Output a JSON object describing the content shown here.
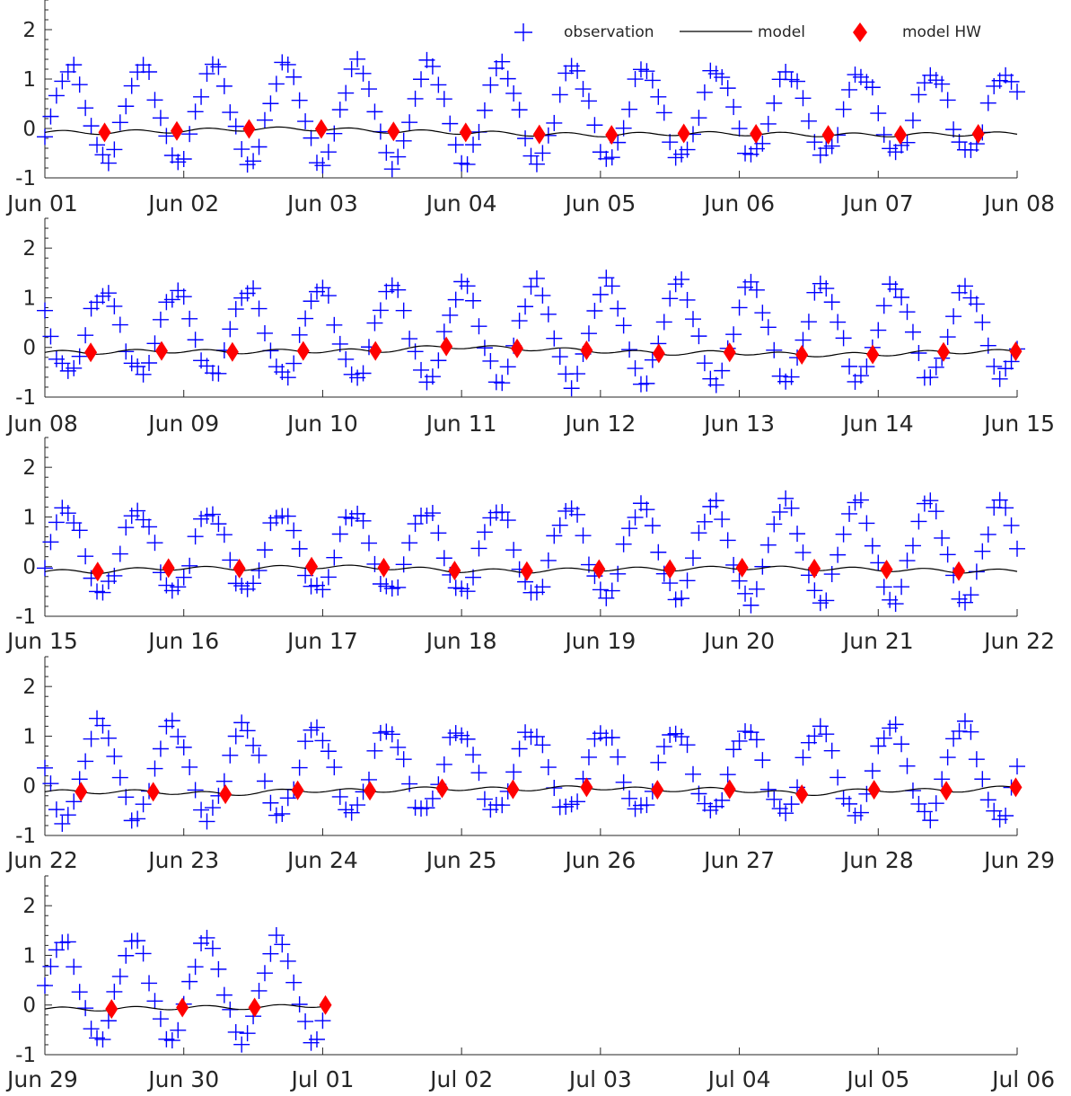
{
  "chart_data": {
    "type": "line",
    "title": "",
    "legend": {
      "placement": "top-right",
      "entries": [
        {
          "label": "observation",
          "marker": "plus",
          "color": "#0000ff"
        },
        {
          "label": "model",
          "marker": "line",
          "color": "#000000"
        },
        {
          "label": "model HW",
          "marker": "diamond",
          "color": "#ff0000"
        }
      ]
    },
    "colors": {
      "observation": "#0000ff",
      "model": "#000000",
      "model_hw": "#ff0000"
    },
    "ylim": [
      -1,
      2.6
    ],
    "yticks": [
      "-1",
      "0",
      "1",
      "2"
    ],
    "grid": false,
    "panels": [
      {
        "xlim": [
          "2021-06-01",
          "2021-06-08"
        ],
        "xticks": [
          "Jun 01",
          "Jun 02",
          "Jun 03",
          "Jun 04",
          "Jun 05",
          "Jun 06",
          "Jun 07",
          "Jun 08"
        ],
        "obs_until_day": 7.0,
        "model_hw": [
          {
            "x": 0.43,
            "y": -0.08
          },
          {
            "x": 0.95,
            "y": -0.05
          },
          {
            "x": 1.47,
            "y": -0.01
          },
          {
            "x": 1.99,
            "y": -0.01
          },
          {
            "x": 2.51,
            "y": -0.06
          },
          {
            "x": 3.03,
            "y": -0.08
          },
          {
            "x": 3.56,
            "y": -0.12
          },
          {
            "x": 4.08,
            "y": -0.13
          },
          {
            "x": 4.6,
            "y": -0.1
          },
          {
            "x": 5.12,
            "y": -0.11
          },
          {
            "x": 5.64,
            "y": -0.13
          },
          {
            "x": 6.16,
            "y": -0.13
          },
          {
            "x": 6.72,
            "y": -0.11
          }
        ]
      },
      {
        "xlim": [
          "2021-06-08",
          "2021-06-15"
        ],
        "xticks": [
          "Jun 08",
          "Jun 09",
          "Jun 10",
          "Jun 11",
          "Jun 12",
          "Jun 13",
          "Jun 14",
          "Jun 15"
        ],
        "obs_until_day": 7.0,
        "model_hw": [
          {
            "x": 0.33,
            "y": -0.1
          },
          {
            "x": 0.84,
            "y": -0.07
          },
          {
            "x": 1.35,
            "y": -0.09
          },
          {
            "x": 1.86,
            "y": -0.07
          },
          {
            "x": 2.38,
            "y": -0.07
          },
          {
            "x": 2.89,
            "y": 0.02
          },
          {
            "x": 3.4,
            "y": -0.02
          },
          {
            "x": 3.9,
            "y": -0.06
          },
          {
            "x": 4.42,
            "y": -0.12
          },
          {
            "x": 4.93,
            "y": -0.1
          },
          {
            "x": 5.45,
            "y": -0.15
          },
          {
            "x": 5.96,
            "y": -0.14
          },
          {
            "x": 6.47,
            "y": -0.09
          },
          {
            "x": 6.99,
            "y": -0.08
          }
        ]
      },
      {
        "xlim": [
          "2021-06-15",
          "2021-06-22"
        ],
        "xticks": [
          "Jun 15",
          "Jun 16",
          "Jun 17",
          "Jun 18",
          "Jun 19",
          "Jun 20",
          "Jun 21",
          "Jun 22"
        ],
        "obs_until_day": 7.0,
        "model_hw": [
          {
            "x": 0.38,
            "y": -0.1
          },
          {
            "x": 0.89,
            "y": -0.03
          },
          {
            "x": 1.4,
            "y": -0.04
          },
          {
            "x": 1.92,
            "y": 0.0
          },
          {
            "x": 2.44,
            "y": -0.02
          },
          {
            "x": 2.95,
            "y": -0.08
          },
          {
            "x": 3.47,
            "y": -0.09
          },
          {
            "x": 3.99,
            "y": -0.05
          },
          {
            "x": 4.5,
            "y": -0.05
          },
          {
            "x": 5.02,
            "y": -0.02
          },
          {
            "x": 5.54,
            "y": -0.04
          },
          {
            "x": 6.06,
            "y": -0.06
          },
          {
            "x": 6.58,
            "y": -0.09
          }
        ]
      },
      {
        "xlim": [
          "2021-06-22",
          "2021-06-29"
        ],
        "xticks": [
          "Jun 22",
          "Jun 23",
          "Jun 24",
          "Jun 25",
          "Jun 26",
          "Jun 27",
          "Jun 28",
          "Jun 29"
        ],
        "obs_until_day": 7.0,
        "model_hw": [
          {
            "x": 0.26,
            "y": -0.12
          },
          {
            "x": 0.78,
            "y": -0.12
          },
          {
            "x": 1.3,
            "y": -0.17
          },
          {
            "x": 1.82,
            "y": -0.09
          },
          {
            "x": 2.34,
            "y": -0.1
          },
          {
            "x": 2.86,
            "y": -0.05
          },
          {
            "x": 3.37,
            "y": -0.07
          },
          {
            "x": 3.9,
            "y": -0.03
          },
          {
            "x": 4.41,
            "y": -0.08
          },
          {
            "x": 4.93,
            "y": -0.07
          },
          {
            "x": 5.45,
            "y": -0.17
          },
          {
            "x": 5.97,
            "y": -0.08
          },
          {
            "x": 6.49,
            "y": -0.1
          },
          {
            "x": 6.99,
            "y": -0.03
          }
        ]
      },
      {
        "xlim": [
          "2021-06-29",
          "2021-07-06"
        ],
        "xticks": [
          "Jun 29",
          "Jun 30",
          "Jul 01",
          "Jul 02",
          "Jul 03",
          "Jul 04",
          "Jul 05",
          "Jul 06"
        ],
        "obs_until_day": 2.0,
        "model_hw": [
          {
            "x": 0.48,
            "y": -0.08
          },
          {
            "x": 0.99,
            "y": -0.05
          },
          {
            "x": 1.51,
            "y": -0.05
          },
          {
            "x": 2.02,
            "y": 0.0
          }
        ]
      }
    ],
    "observation_model": {
      "amplitude_m": 1.0,
      "mean_m": 0.3,
      "period_h": 12.42,
      "phase_first_peak_day": 0.18,
      "sample_interval_h": 1.0
    }
  }
}
